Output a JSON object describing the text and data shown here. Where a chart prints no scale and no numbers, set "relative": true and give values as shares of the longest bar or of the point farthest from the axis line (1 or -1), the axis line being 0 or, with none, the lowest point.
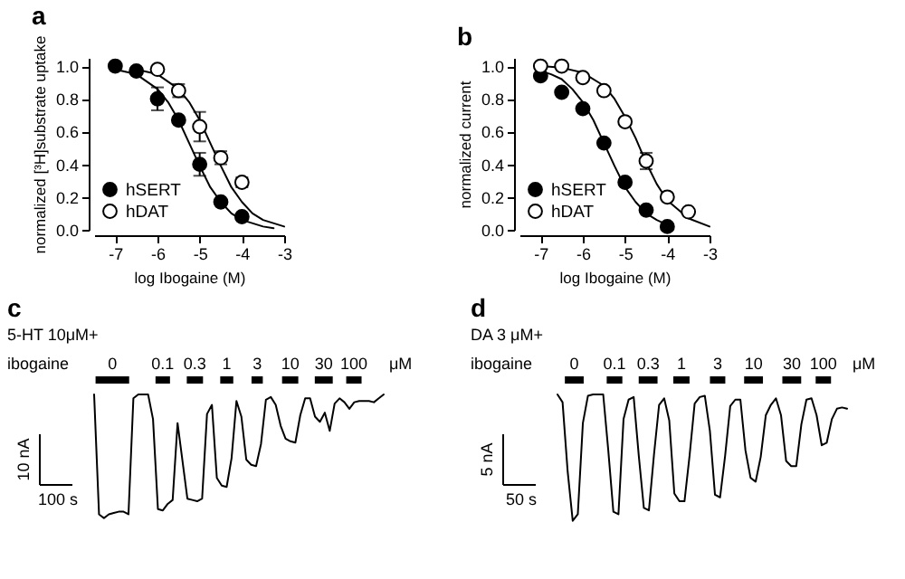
{
  "chart_data": [
    {
      "type": "scatter",
      "title": "a",
      "xlabel": "log Ibogaine (M)",
      "ylabel": "normalized [³H]substrate uptake",
      "xlim": [
        -7.5,
        -3
      ],
      "xticks": [
        -7,
        -6,
        -5,
        -4,
        -3
      ],
      "ylim": [
        0,
        1.05
      ],
      "yticks": [
        {
          "value": 0,
          "label": "0.0"
        },
        {
          "value": 0.2,
          "label": "0.2"
        },
        {
          "value": 0.4,
          "label": "0.4"
        },
        {
          "value": 0.6,
          "label": "0.6"
        },
        {
          "value": 0.8,
          "label": "0.8"
        },
        {
          "value": 1,
          "label": "1.0"
        }
      ],
      "grid": false,
      "legend": "bottom left",
      "marker": "circle",
      "series": [
        {
          "name": "hSERT",
          "color": "#000000",
          "x": [
            -7,
            -6.5,
            -6,
            -5.5,
            -5,
            -4.5,
            -4
          ],
          "values": [
            1.0,
            0.97,
            0.8,
            0.67,
            0.4,
            0.17,
            0.08
          ],
          "errors": [
            null,
            null,
            0.07,
            null,
            0.07,
            null,
            null
          ]
        },
        {
          "name": "hDAT",
          "color": "#ffffff",
          "x": [
            -6,
            -5.5,
            -5,
            -4.5,
            -4
          ],
          "values": [
            0.98,
            0.85,
            0.63,
            0.44,
            0.29
          ],
          "errors": [
            null,
            0.04,
            0.09,
            0.04,
            0.03
          ]
        },
        {
          "type": "line",
          "marker": "none",
          "color": "#000000",
          "x": [
            -7,
            -6.5,
            -6,
            -5.75,
            -5.5,
            -5.25,
            -5,
            -4.75,
            -4.5,
            -4.25,
            -4,
            -3.5,
            -3.25
          ],
          "values": [
            0.98,
            0.95,
            0.86,
            0.78,
            0.67,
            0.53,
            0.39,
            0.26,
            0.17,
            0.1,
            0.06,
            0.02,
            0.01
          ]
        },
        {
          "type": "line",
          "marker": "none",
          "color": "#000000",
          "x": [
            -6.5,
            -6,
            -5.5,
            -5.25,
            -5,
            -4.75,
            -4.5,
            -4.25,
            -4,
            -3.75,
            -3.5,
            -3
          ],
          "values": [
            0.98,
            0.95,
            0.86,
            0.78,
            0.67,
            0.53,
            0.39,
            0.26,
            0.17,
            0.1,
            0.06,
            0.02
          ]
        }
      ]
    },
    {
      "type": "scatter",
      "title": "b",
      "xlabel": "log Ibogaine (M)",
      "ylabel": "normalized current",
      "xlim": [
        -7.5,
        -3
      ],
      "xticks": [
        -7,
        -6,
        -5,
        -4,
        -3
      ],
      "ylim": [
        0,
        1.05
      ],
      "yticks": [
        {
          "value": 0,
          "label": "0.0"
        },
        {
          "value": 0.2,
          "label": "0.2"
        },
        {
          "value": 0.4,
          "label": "0.4"
        },
        {
          "value": 0.6,
          "label": "0.6"
        },
        {
          "value": 0.8,
          "label": "0.8"
        },
        {
          "value": 1,
          "label": "1.0"
        }
      ],
      "grid": false,
      "legend": "bottom left",
      "marker": "circle",
      "series": [
        {
          "name": "hSERT",
          "color": "#000000",
          "x": [
            -7,
            -6.5,
            -6,
            -5.5,
            -5,
            -4.5,
            -4
          ],
          "values": [
            0.94,
            0.84,
            0.74,
            0.53,
            0.29,
            0.12,
            0.02
          ]
        },
        {
          "name": "hDAT",
          "color": "#ffffff",
          "x": [
            -7,
            -6.5,
            -6,
            -5.5,
            -5,
            -4.5,
            -4,
            -3.5
          ],
          "values": [
            1.0,
            1.0,
            0.93,
            0.85,
            0.66,
            0.42,
            0.2,
            0.11
          ],
          "errors": [
            null,
            null,
            null,
            null,
            null,
            0.05,
            null,
            null
          ]
        },
        {
          "type": "line",
          "marker": "none",
          "color": "#000000",
          "x": [
            -7,
            -6.75,
            -6.5,
            -6.25,
            -6,
            -5.75,
            -5.5,
            -5.25,
            -5,
            -4.75,
            -4.5,
            -4.25,
            -4
          ],
          "values": [
            0.97,
            0.95,
            0.92,
            0.86,
            0.78,
            0.67,
            0.53,
            0.39,
            0.26,
            0.17,
            0.1,
            0.06,
            0.03
          ]
        },
        {
          "type": "line",
          "marker": "none",
          "color": "#000000",
          "x": [
            -7,
            -6.5,
            -6,
            -5.5,
            -5.25,
            -5,
            -4.75,
            -4.5,
            -4.25,
            -4,
            -3.5,
            -3
          ],
          "values": [
            1.0,
            0.99,
            0.96,
            0.88,
            0.8,
            0.69,
            0.56,
            0.41,
            0.28,
            0.18,
            0.07,
            0.02
          ]
        }
      ]
    },
    {
      "type": "line",
      "title": "c",
      "relative": true,
      "annotations": [
        "5-HT 10μM+",
        "ibogaine",
        "0",
        "0.1",
        "0.3",
        "1",
        "3",
        "10",
        "30",
        "100",
        "μM",
        "10 nA",
        "100 s"
      ],
      "categories": [
        null,
        null,
        null,
        null,
        null,
        null,
        null,
        null,
        null,
        null,
        null,
        null,
        null,
        null,
        null,
        null,
        null,
        null,
        null,
        null,
        null,
        null,
        null,
        null,
        null,
        null,
        null,
        null,
        null,
        null,
        null,
        null,
        null,
        null,
        null,
        null,
        null,
        null,
        null,
        null,
        null,
        null,
        null,
        null,
        null,
        null,
        null,
        null,
        null,
        null,
        null,
        null,
        null,
        null,
        null,
        null,
        null,
        null,
        null,
        null
      ],
      "series": [
        {
          "color": "#000000",
          "values": [
            1.0,
            0.08,
            0.05,
            0.08,
            0.09,
            0.1,
            0.1,
            0.08,
            0.97,
            1.0,
            1.0,
            1.0,
            0.81,
            0.12,
            0.11,
            0.16,
            0.19,
            0.78,
            0.49,
            0.2,
            0.19,
            0.18,
            0.2,
            0.85,
            0.92,
            0.36,
            0.3,
            0.29,
            0.51,
            0.95,
            0.83,
            0.5,
            0.46,
            0.45,
            0.62,
            0.96,
            0.98,
            0.92,
            0.76,
            0.66,
            0.64,
            0.63,
            0.84,
            0.97,
            0.97,
            0.83,
            0.79,
            0.86,
            0.72,
            0.93,
            0.97,
            0.94,
            0.89,
            0.94,
            0.95,
            0.95,
            0.95,
            0.94,
            0.97,
            1.0
          ]
        }
      ]
    },
    {
      "type": "line",
      "title": "d",
      "relative": true,
      "annotations": [
        "DA 3 μM+",
        "ibogaine",
        "0",
        "0.1",
        "0.3",
        "1",
        "3",
        "10",
        "30",
        "100",
        "μM",
        "5 nA",
        "50 s"
      ],
      "categories": [
        null,
        null,
        null,
        null,
        null,
        null,
        null,
        null,
        null,
        null,
        null,
        null,
        null,
        null,
        null,
        null,
        null,
        null,
        null,
        null,
        null,
        null,
        null,
        null,
        null,
        null,
        null,
        null,
        null,
        null,
        null,
        null,
        null,
        null,
        null,
        null,
        null,
        null,
        null,
        null,
        null,
        null,
        null,
        null,
        null,
        null,
        null,
        null,
        null,
        null,
        null,
        null,
        null,
        null,
        null,
        null,
        null,
        null
      ],
      "series": [
        {
          "color": "#000000",
          "values": [
            1.0,
            0.94,
            0.41,
            0.03,
            0.08,
            0.78,
            0.99,
            1.0,
            1.0,
            1.0,
            0.57,
            0.1,
            0.08,
            0.81,
            0.96,
            0.98,
            0.53,
            0.13,
            0.11,
            0.54,
            0.92,
            0.97,
            0.8,
            0.24,
            0.18,
            0.18,
            0.53,
            0.93,
            0.98,
            0.99,
            0.72,
            0.23,
            0.21,
            0.53,
            0.91,
            0.96,
            0.96,
            0.57,
            0.36,
            0.33,
            0.52,
            0.84,
            0.92,
            0.97,
            0.84,
            0.49,
            0.45,
            0.45,
            0.77,
            0.96,
            0.97,
            0.84,
            0.61,
            0.63,
            0.81,
            0.89,
            0.9,
            0.89
          ]
        }
      ]
    }
  ]
}
